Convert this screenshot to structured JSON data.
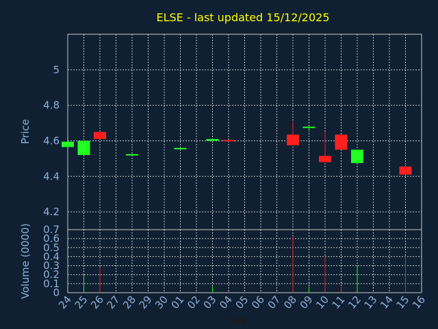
{
  "chart_data": {
    "type": "candlestick",
    "title": "ELSE - last updated 15/12/2025",
    "xlabel": "Day",
    "ylabel_price": "Price",
    "ylabel_volume": "Volume (0000)",
    "x_ticks": [
      "24",
      "25",
      "26",
      "27",
      "28",
      "29",
      "30",
      "01",
      "02",
      "03",
      "04",
      "05",
      "06",
      "07",
      "08",
      "09",
      "10",
      "11",
      "12",
      "13",
      "14",
      "15",
      "16"
    ],
    "price_ylim": [
      4.1,
      5.2
    ],
    "price_ticks": [
      4.2,
      4.4,
      4.6,
      4.8,
      5
    ],
    "volume_ylim": [
      0,
      0.7
    ],
    "volume_ticks": [
      0,
      0.1,
      0.2,
      0.3,
      0.4,
      0.5,
      0.6,
      0.7
    ],
    "grid": true,
    "colors": {
      "up": "#22ff22",
      "down": "#ff1f1f",
      "title": "#ffff00",
      "axis_text": "#8fb0d8",
      "grid": "#c8c8c8"
    },
    "candles": [
      {
        "x": "24",
        "open": 4.565,
        "close": 4.595,
        "high": 4.595,
        "low": 4.565
      },
      {
        "x": "25",
        "open": 4.52,
        "close": 4.6,
        "high": 4.6,
        "low": 4.52
      },
      {
        "x": "26",
        "open": 4.65,
        "close": 4.61,
        "high": 4.65,
        "low": 4.61
      },
      {
        "x": "28",
        "open": 4.52,
        "close": 4.525,
        "high": 4.525,
        "low": 4.52
      },
      {
        "x": "01",
        "open": 4.555,
        "close": 4.56,
        "high": 4.56,
        "low": 4.555
      },
      {
        "x": "03",
        "open": 4.6,
        "close": 4.61,
        "high": 4.61,
        "low": 4.6
      },
      {
        "x": "04",
        "open": 4.605,
        "close": 4.6,
        "high": 4.605,
        "low": 4.6
      },
      {
        "x": "08",
        "open": 4.635,
        "close": 4.575,
        "high": 4.71,
        "low": 4.575
      },
      {
        "x": "09",
        "open": 4.675,
        "close": 4.68,
        "high": 4.68,
        "low": 4.65
      },
      {
        "x": "10",
        "open": 4.515,
        "close": 4.48,
        "high": 4.65,
        "low": 4.48
      },
      {
        "x": "11",
        "open": 4.635,
        "close": 4.55,
        "high": 4.635,
        "low": 4.55
      },
      {
        "x": "12",
        "open": 4.475,
        "close": 4.55,
        "high": 4.55,
        "low": 4.475
      },
      {
        "x": "15",
        "open": 4.455,
        "close": 4.41,
        "high": 4.47,
        "low": 4.41
      }
    ],
    "volume": [
      {
        "x": "25",
        "value": 0.2,
        "dir": "up"
      },
      {
        "x": "26",
        "value": 0.29,
        "dir": "down"
      },
      {
        "x": "03",
        "value": 0.07,
        "dir": "up"
      },
      {
        "x": "04",
        "value": 0.01,
        "dir": "down"
      },
      {
        "x": "08",
        "value": 0.62,
        "dir": "down"
      },
      {
        "x": "09",
        "value": 0.07,
        "dir": "up"
      },
      {
        "x": "10",
        "value": 0.4,
        "dir": "down"
      },
      {
        "x": "11",
        "value": 0.07,
        "dir": "down"
      },
      {
        "x": "12",
        "value": 0.29,
        "dir": "up"
      },
      {
        "x": "15",
        "value": 0.41,
        "dir": "down"
      }
    ]
  }
}
